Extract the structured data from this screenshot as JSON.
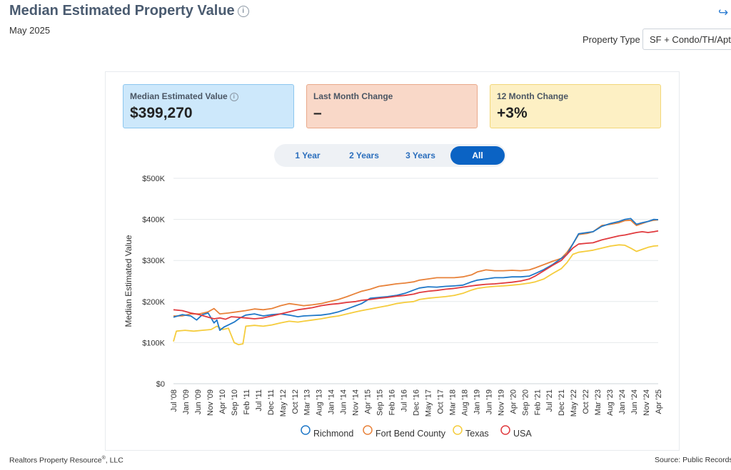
{
  "header": {
    "title": "Median Estimated Property Value",
    "info_icon": "i",
    "subtitle": "May 2025",
    "share_icon": "↪"
  },
  "property_type": {
    "label": "Property Type",
    "value": "SF + Condo/TH/Apt"
  },
  "cards": [
    {
      "label": "Median Estimated Value",
      "value": "$399,270",
      "info_icon": "i"
    },
    {
      "label": "Last Month Change",
      "value": "–"
    },
    {
      "label": "12 Month Change",
      "value": "+3%"
    }
  ],
  "range_buttons": [
    {
      "label": "1 Year",
      "active": false
    },
    {
      "label": "2 Years",
      "active": false
    },
    {
      "label": "3 Years",
      "active": false
    },
    {
      "label": "All",
      "active": true
    }
  ],
  "footer": {
    "company": "Realtors Property Resource",
    "company_mark": "®",
    "company_suffix": ", LLC",
    "source_label": "Source:",
    "source_value": "Public Records"
  },
  "colors": {
    "Richmond": "#1f78c8",
    "Fort Bend County": "#e8823a",
    "Texas": "#f5cc3c",
    "USA": "#e03a3e"
  },
  "chart_data": {
    "type": "line",
    "title": "",
    "xlabel": "",
    "ylabel": "Median Estimated Value",
    "ylim": [
      0,
      500000
    ],
    "y_ticks": [
      0,
      100000,
      200000,
      300000,
      400000,
      500000
    ],
    "y_tick_labels": [
      "$0",
      "$100K",
      "$200K",
      "$300K",
      "$400K",
      "$500K"
    ],
    "x_start": 2008.5,
    "x_end": 2025.25,
    "x_tick_labels": [
      "Jul '08",
      "Jan '09",
      "Jun '09",
      "Nov '09",
      "Apr '10",
      "Sep '10",
      "Feb '11",
      "Jul '11",
      "Dec '11",
      "May '12",
      "Oct '12",
      "Mar '13",
      "Aug '13",
      "Jan '14",
      "Jun '14",
      "Nov '14",
      "Apr '15",
      "Sep '15",
      "Feb '16",
      "Jul '16",
      "Dec '16",
      "May '17",
      "Oct '17",
      "Mar '18",
      "Aug '18",
      "Jan '19",
      "Jun '19",
      "Nov '19",
      "Apr '20",
      "Sep '20",
      "Feb '21",
      "Jul '21",
      "Dec '21",
      "May '22",
      "Oct '22",
      "Mar '23",
      "Aug '23",
      "Jan '24",
      "Jun '24",
      "Nov '24",
      "Apr '25"
    ],
    "legend_position": "bottom",
    "series": [
      {
        "name": "Richmond",
        "points": [
          [
            2008.5,
            162000
          ],
          [
            2008.8,
            168000
          ],
          [
            2009.1,
            165000
          ],
          [
            2009.3,
            155000
          ],
          [
            2009.5,
            168000
          ],
          [
            2009.7,
            172000
          ],
          [
            2009.9,
            148000
          ],
          [
            2010.0,
            155000
          ],
          [
            2010.1,
            130000
          ],
          [
            2010.25,
            138000
          ],
          [
            2010.4,
            143000
          ],
          [
            2010.6,
            150000
          ],
          [
            2010.8,
            160000
          ],
          [
            2011.0,
            167000
          ],
          [
            2011.3,
            170000
          ],
          [
            2011.6,
            165000
          ],
          [
            2011.9,
            168000
          ],
          [
            2012.2,
            170000
          ],
          [
            2012.5,
            167000
          ],
          [
            2012.8,
            163000
          ],
          [
            2013.0,
            165000
          ],
          [
            2013.3,
            166000
          ],
          [
            2013.6,
            167000
          ],
          [
            2013.9,
            170000
          ],
          [
            2014.2,
            175000
          ],
          [
            2014.5,
            182000
          ],
          [
            2014.8,
            190000
          ],
          [
            2015.0,
            195000
          ],
          [
            2015.3,
            208000
          ],
          [
            2015.6,
            210000
          ],
          [
            2015.9,
            212000
          ],
          [
            2016.2,
            215000
          ],
          [
            2016.5,
            220000
          ],
          [
            2016.8,
            228000
          ],
          [
            2017.0,
            233000
          ],
          [
            2017.3,
            236000
          ],
          [
            2017.6,
            235000
          ],
          [
            2017.9,
            237000
          ],
          [
            2018.2,
            238000
          ],
          [
            2018.5,
            240000
          ],
          [
            2018.8,
            248000
          ],
          [
            2019.0,
            252000
          ],
          [
            2019.3,
            255000
          ],
          [
            2019.6,
            258000
          ],
          [
            2019.9,
            258000
          ],
          [
            2020.2,
            260000
          ],
          [
            2020.5,
            260000
          ],
          [
            2020.8,
            262000
          ],
          [
            2021.0,
            268000
          ],
          [
            2021.3,
            278000
          ],
          [
            2021.6,
            290000
          ],
          [
            2021.9,
            305000
          ],
          [
            2022.1,
            315000
          ],
          [
            2022.3,
            340000
          ],
          [
            2022.5,
            365000
          ],
          [
            2022.8,
            368000
          ],
          [
            2023.0,
            370000
          ],
          [
            2023.3,
            383000
          ],
          [
            2023.6,
            390000
          ],
          [
            2023.9,
            395000
          ],
          [
            2024.1,
            400000
          ],
          [
            2024.3,
            402000
          ],
          [
            2024.5,
            388000
          ],
          [
            2024.7,
            392000
          ],
          [
            2024.9,
            395000
          ],
          [
            2025.1,
            400000
          ],
          [
            2025.25,
            399270
          ]
        ]
      },
      {
        "name": "Fort Bend County",
        "points": [
          [
            2008.5,
            165000
          ],
          [
            2008.8,
            165000
          ],
          [
            2009.1,
            170000
          ],
          [
            2009.4,
            170000
          ],
          [
            2009.7,
            175000
          ],
          [
            2009.9,
            183000
          ],
          [
            2010.1,
            170000
          ],
          [
            2010.4,
            172000
          ],
          [
            2010.7,
            175000
          ],
          [
            2011.0,
            178000
          ],
          [
            2011.3,
            182000
          ],
          [
            2011.6,
            180000
          ],
          [
            2011.9,
            183000
          ],
          [
            2012.2,
            190000
          ],
          [
            2012.5,
            195000
          ],
          [
            2012.8,
            192000
          ],
          [
            2013.0,
            190000
          ],
          [
            2013.3,
            192000
          ],
          [
            2013.6,
            195000
          ],
          [
            2013.9,
            200000
          ],
          [
            2014.2,
            205000
          ],
          [
            2014.5,
            212000
          ],
          [
            2014.8,
            220000
          ],
          [
            2015.0,
            225000
          ],
          [
            2015.3,
            230000
          ],
          [
            2015.6,
            237000
          ],
          [
            2015.9,
            240000
          ],
          [
            2016.2,
            243000
          ],
          [
            2016.5,
            245000
          ],
          [
            2016.8,
            248000
          ],
          [
            2017.0,
            252000
          ],
          [
            2017.3,
            255000
          ],
          [
            2017.6,
            258000
          ],
          [
            2017.9,
            258000
          ],
          [
            2018.2,
            258000
          ],
          [
            2018.5,
            260000
          ],
          [
            2018.8,
            265000
          ],
          [
            2019.0,
            272000
          ],
          [
            2019.3,
            277000
          ],
          [
            2019.6,
            275000
          ],
          [
            2019.9,
            275000
          ],
          [
            2020.2,
            276000
          ],
          [
            2020.5,
            275000
          ],
          [
            2020.8,
            277000
          ],
          [
            2021.0,
            282000
          ],
          [
            2021.3,
            290000
          ],
          [
            2021.6,
            298000
          ],
          [
            2021.9,
            305000
          ],
          [
            2022.1,
            320000
          ],
          [
            2022.3,
            340000
          ],
          [
            2022.5,
            363000
          ],
          [
            2022.8,
            366000
          ],
          [
            2023.0,
            370000
          ],
          [
            2023.3,
            385000
          ],
          [
            2023.6,
            388000
          ],
          [
            2023.9,
            392000
          ],
          [
            2024.1,
            397000
          ],
          [
            2024.3,
            398000
          ],
          [
            2024.5,
            385000
          ],
          [
            2024.7,
            390000
          ],
          [
            2024.9,
            395000
          ],
          [
            2025.1,
            398000
          ],
          [
            2025.25,
            399000
          ]
        ]
      },
      {
        "name": "Texas",
        "points": [
          [
            2008.5,
            103000
          ],
          [
            2008.6,
            128000
          ],
          [
            2008.9,
            130000
          ],
          [
            2009.2,
            128000
          ],
          [
            2009.5,
            130000
          ],
          [
            2009.8,
            132000
          ],
          [
            2010.0,
            140000
          ],
          [
            2010.2,
            132000
          ],
          [
            2010.4,
            135000
          ],
          [
            2010.6,
            100000
          ],
          [
            2010.75,
            95000
          ],
          [
            2010.9,
            97000
          ],
          [
            2011.0,
            140000
          ],
          [
            2011.3,
            142000
          ],
          [
            2011.6,
            140000
          ],
          [
            2011.9,
            143000
          ],
          [
            2012.2,
            148000
          ],
          [
            2012.5,
            152000
          ],
          [
            2012.8,
            150000
          ],
          [
            2013.0,
            152000
          ],
          [
            2013.3,
            155000
          ],
          [
            2013.6,
            158000
          ],
          [
            2013.9,
            162000
          ],
          [
            2014.2,
            165000
          ],
          [
            2014.5,
            170000
          ],
          [
            2014.8,
            175000
          ],
          [
            2015.0,
            178000
          ],
          [
            2015.3,
            182000
          ],
          [
            2015.6,
            186000
          ],
          [
            2015.9,
            190000
          ],
          [
            2016.2,
            195000
          ],
          [
            2016.5,
            198000
          ],
          [
            2016.8,
            200000
          ],
          [
            2017.0,
            205000
          ],
          [
            2017.3,
            208000
          ],
          [
            2017.6,
            210000
          ],
          [
            2017.9,
            212000
          ],
          [
            2018.2,
            215000
          ],
          [
            2018.5,
            220000
          ],
          [
            2018.8,
            228000
          ],
          [
            2019.0,
            232000
          ],
          [
            2019.3,
            235000
          ],
          [
            2019.6,
            237000
          ],
          [
            2019.9,
            238000
          ],
          [
            2020.2,
            240000
          ],
          [
            2020.5,
            242000
          ],
          [
            2020.8,
            245000
          ],
          [
            2021.0,
            248000
          ],
          [
            2021.3,
            255000
          ],
          [
            2021.6,
            268000
          ],
          [
            2021.9,
            280000
          ],
          [
            2022.1,
            295000
          ],
          [
            2022.3,
            315000
          ],
          [
            2022.5,
            320000
          ],
          [
            2022.8,
            323000
          ],
          [
            2023.0,
            325000
          ],
          [
            2023.3,
            330000
          ],
          [
            2023.6,
            335000
          ],
          [
            2023.9,
            338000
          ],
          [
            2024.1,
            337000
          ],
          [
            2024.3,
            330000
          ],
          [
            2024.5,
            322000
          ],
          [
            2024.7,
            327000
          ],
          [
            2024.9,
            332000
          ],
          [
            2025.1,
            335000
          ],
          [
            2025.25,
            336000
          ]
        ]
      },
      {
        "name": "USA",
        "points": [
          [
            2008.5,
            180000
          ],
          [
            2008.8,
            178000
          ],
          [
            2009.1,
            172000
          ],
          [
            2009.4,
            168000
          ],
          [
            2009.7,
            162000
          ],
          [
            2009.9,
            158000
          ],
          [
            2010.1,
            160000
          ],
          [
            2010.3,
            157000
          ],
          [
            2010.5,
            163000
          ],
          [
            2010.7,
            162000
          ],
          [
            2011.0,
            160000
          ],
          [
            2011.3,
            158000
          ],
          [
            2011.6,
            160000
          ],
          [
            2011.9,
            165000
          ],
          [
            2012.2,
            170000
          ],
          [
            2012.5,
            175000
          ],
          [
            2012.8,
            180000
          ],
          [
            2013.0,
            182000
          ],
          [
            2013.3,
            185000
          ],
          [
            2013.6,
            190000
          ],
          [
            2013.9,
            193000
          ],
          [
            2014.2,
            195000
          ],
          [
            2014.5,
            198000
          ],
          [
            2014.8,
            200000
          ],
          [
            2015.0,
            203000
          ],
          [
            2015.3,
            205000
          ],
          [
            2015.6,
            208000
          ],
          [
            2015.9,
            210000
          ],
          [
            2016.2,
            213000
          ],
          [
            2016.5,
            215000
          ],
          [
            2016.8,
            218000
          ],
          [
            2017.0,
            222000
          ],
          [
            2017.3,
            225000
          ],
          [
            2017.6,
            227000
          ],
          [
            2017.9,
            230000
          ],
          [
            2018.2,
            232000
          ],
          [
            2018.5,
            235000
          ],
          [
            2018.8,
            238000
          ],
          [
            2019.0,
            240000
          ],
          [
            2019.3,
            242000
          ],
          [
            2019.6,
            243000
          ],
          [
            2019.9,
            245000
          ],
          [
            2020.2,
            247000
          ],
          [
            2020.5,
            250000
          ],
          [
            2020.8,
            255000
          ],
          [
            2021.0,
            262000
          ],
          [
            2021.3,
            275000
          ],
          [
            2021.6,
            288000
          ],
          [
            2021.9,
            300000
          ],
          [
            2022.1,
            315000
          ],
          [
            2022.3,
            330000
          ],
          [
            2022.5,
            340000
          ],
          [
            2022.8,
            342000
          ],
          [
            2023.0,
            343000
          ],
          [
            2023.3,
            350000
          ],
          [
            2023.6,
            355000
          ],
          [
            2023.9,
            360000
          ],
          [
            2024.1,
            362000
          ],
          [
            2024.3,
            365000
          ],
          [
            2024.5,
            368000
          ],
          [
            2024.7,
            370000
          ],
          [
            2024.9,
            368000
          ],
          [
            2025.1,
            370000
          ],
          [
            2025.25,
            372000
          ]
        ]
      }
    ]
  }
}
